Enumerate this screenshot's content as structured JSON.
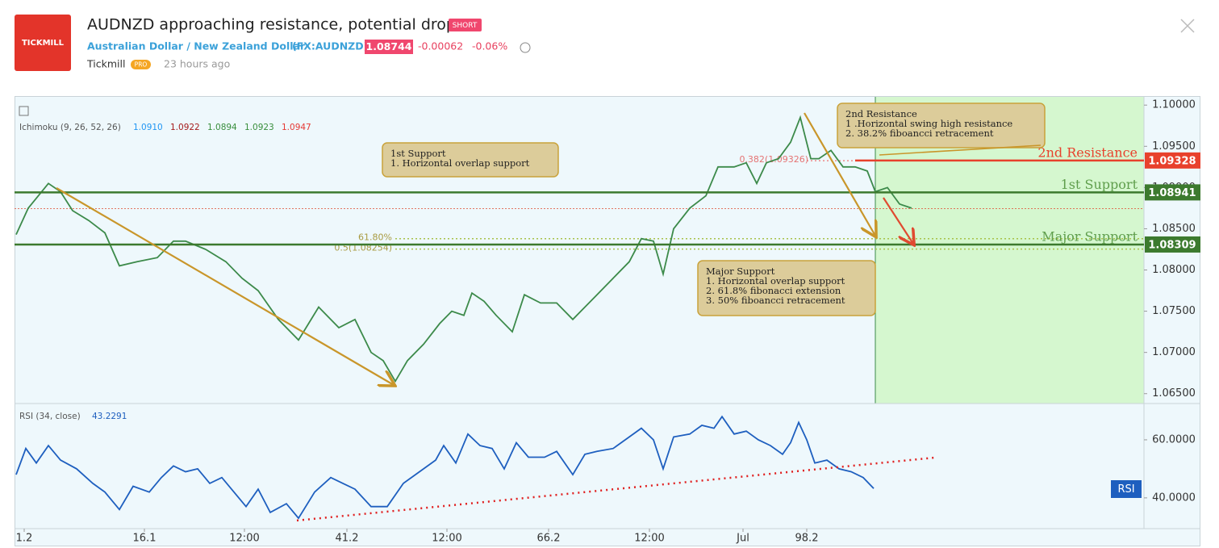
{
  "header": {
    "logo": "TICKMILL",
    "title": "AUDNZD approaching resistance, potential drop!",
    "badge": "SHORT",
    "instrument": "Australian Dollar / New Zealand Dollar",
    "symbol": "(FX:AUDNZD)",
    "price": "1.08744",
    "change": "-0.00062",
    "change_pct": "-0.06%",
    "author": "Tickmill",
    "author_badge": "PRO",
    "time": "23 hours ago"
  },
  "chart_data": [
    {
      "type": "line",
      "legend": "Ichimoku (9, 26, 52, 26)",
      "indicator_values": [
        "1.0910",
        "1.0922",
        "1.0894",
        "1.0923",
        "1.0947"
      ],
      "x": [
        0.2,
        1.7,
        4.2,
        5.7,
        7.2,
        9.2,
        11.2,
        13,
        15.2,
        17.7,
        19.7,
        21.2,
        23.7,
        26.2,
        28.2,
        30.2,
        32.7,
        35.2,
        37.7,
        40.2,
        42.2,
        44.2,
        45.7,
        47.2,
        48.7,
        50.7,
        52.7,
        54.2,
        55.7,
        56.7,
        58.2,
        59.7,
        61.7,
        63.2,
        65.2,
        67.2,
        69.2,
        70.7,
        72.2,
        74.2,
        76.2,
        77.7,
        79.2,
        80.4,
        81.7,
        83.7,
        85.7,
        87.2,
        89.2,
        90.7,
        92,
        93.2,
        94.7,
        96.2,
        97.4,
        98.7,
        99.7,
        101.2,
        102.7,
        104.2,
        105.7,
        106.7,
        108.2,
        109.7,
        111.2
      ],
      "series": [
        {
          "color": "#3c8a4a",
          "values": [
            1.0843,
            1.0875,
            1.0905,
            1.0895,
            1.0872,
            1.086,
            1.0845,
            1.0805,
            1.081,
            1.0815,
            1.0835,
            1.0835,
            1.0825,
            1.081,
            1.079,
            1.0775,
            1.074,
            1.0715,
            1.0755,
            1.073,
            1.074,
            1.07,
            1.069,
            1.0665,
            1.069,
            1.071,
            1.0735,
            1.075,
            1.0745,
            1.0772,
            1.0762,
            1.0745,
            1.0725,
            1.077,
            1.076,
            1.076,
            1.074,
            1.0755,
            1.077,
            1.079,
            1.081,
            1.0838,
            1.0835,
            1.0795,
            1.085,
            1.0875,
            1.089,
            1.0925,
            1.0925,
            1.093,
            1.0905,
            1.093,
            1.0935,
            1.0955,
            1.0985,
            1.0935,
            1.0935,
            1.0945,
            1.0925,
            1.0925,
            1.092,
            1.0895,
            1.09,
            1.088,
            1.0875
          ]
        }
      ],
      "xlim": [
        0,
        140
      ],
      "ylim": [
        1.0638,
        1.101
      ],
      "yticks": [
        {
          "value": 1.1,
          "label": "1.10000"
        },
        {
          "value": 1.095,
          "label": "1.09500"
        },
        {
          "value": 1.09,
          "label": "1.09000"
        },
        {
          "value": 1.085,
          "label": "1.08500"
        },
        {
          "value": 1.08,
          "label": "1.08000"
        },
        {
          "value": 1.075,
          "label": "1.07500"
        },
        {
          "value": 1.07,
          "label": "1.07000"
        },
        {
          "value": 1.065,
          "label": "1.06500"
        }
      ],
      "last": 1.08744,
      "levels": [
        {
          "name": "2nd Resistance",
          "value": 1.09328,
          "color": "#e8412c"
        },
        {
          "name": "1st Support",
          "value": 1.08941,
          "color": "#5f9e4c"
        },
        {
          "name": "Major Support",
          "value": 1.08309,
          "color": "#5f9e4c"
        }
      ],
      "fib": [
        {
          "label": "61.80%",
          "value": 1.0838
        },
        {
          "label": "0.5(1.08254)",
          "value": 1.08254
        },
        {
          "label": "0.382(1.09326)",
          "value": 1.09326
        }
      ],
      "annotations": [
        {
          "lines": [
            "1st Support",
            "1. Horizontal overlap support"
          ]
        },
        {
          "lines": [
            "Major Support",
            "1. Horizontal overlap support",
            "2. 61.8% fibonacci extension",
            "3. 50% fiboancci retracement"
          ]
        },
        {
          "lines": [
            "2nd Resistance",
            "1 .Horizontal swing high resistance",
            "2. 38.2% fiboancci retracement"
          ]
        }
      ]
    },
    {
      "type": "line",
      "legend": "RSI (34, close)",
      "badge": "RSI",
      "x": [
        0.2,
        1.4,
        2.7,
        4.2,
        5.7,
        7.7,
        9.7,
        11.2,
        13,
        14.7,
        16.7,
        18.2,
        19.7,
        21.2,
        22.7,
        24.2,
        25.7,
        27.2,
        28.7,
        30.2,
        31.7,
        33.7,
        35.2,
        37.2,
        39.2,
        40.7,
        42.2,
        44.2,
        46.2,
        48.2,
        50.2,
        52.2,
        53.2,
        54.7,
        56.2,
        57.7,
        59.2,
        60.7,
        62.2,
        63.7,
        65.7,
        67.2,
        69.2,
        70.7,
        72.2,
        74.2,
        76.2,
        77.7,
        79.2,
        80.4,
        81.7,
        83.7,
        85.2,
        86.7,
        87.7,
        89.2,
        90.7,
        92.2,
        93.7,
        95.2,
        96.2,
        97.2,
        98.2,
        99.2,
        100.7,
        102.2,
        103.7,
        105.2,
        106.5
      ],
      "series": [
        {
          "color": "#1e5fbf",
          "values": [
            48,
            57,
            52,
            58,
            53,
            50,
            45,
            42,
            36,
            44,
            42,
            47,
            51,
            49,
            50,
            45,
            47,
            42,
            37,
            43,
            35,
            38,
            33,
            42,
            47,
            45,
            43,
            37,
            37,
            45,
            49,
            53,
            58,
            52,
            62,
            58,
            57,
            50,
            59,
            54,
            54,
            56,
            48,
            55,
            56,
            57,
            61,
            64,
            60,
            50,
            61,
            62,
            65,
            64,
            68,
            62,
            63,
            60,
            58,
            55,
            59,
            66,
            60,
            52,
            53,
            50,
            49,
            47,
            43.2291
          ]
        }
      ],
      "trendline": {
        "x": [
          35,
          114.2
        ],
        "values": [
          32.2,
          53.9
        ],
        "color": "#e02020"
      },
      "xlim": [
        0,
        140
      ],
      "ylim": [
        29.4,
        72.5
      ],
      "yticks": [
        {
          "value": 60,
          "label": "60.0000"
        },
        {
          "value": 40,
          "label": "40.0000"
        }
      ],
      "xticks": [
        1.2,
        16.1,
        {
          "value": 28.5,
          "label": "12:00"
        },
        41.2,
        {
          "value": 53.6,
          "label": "12:00"
        },
        66.2,
        {
          "value": 78.7,
          "label": "12:00"
        },
        {
          "value": 90.3,
          "label": "Jul"
        },
        98.2
      ]
    }
  ]
}
